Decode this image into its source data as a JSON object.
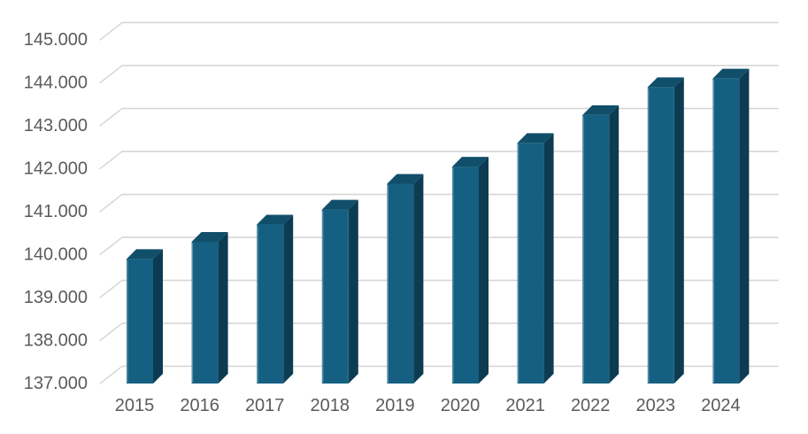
{
  "chart_data": {
    "type": "bar",
    "variant": "3d-column",
    "title": "",
    "categories": [
      "2015",
      "2016",
      "2017",
      "2018",
      "2019",
      "2020",
      "2021",
      "2022",
      "2023",
      "2024"
    ],
    "values": [
      139900,
      140300,
      140700,
      141050,
      141650,
      142050,
      142600,
      143250,
      143900,
      144100
    ],
    "ylim": [
      137000,
      145000
    ],
    "ytick_step": 1000,
    "ytick_labels": [
      "137.000",
      "138.000",
      "139.000",
      "140.000",
      "141.000",
      "142.000",
      "143.000",
      "144.000",
      "145.000"
    ],
    "grid": true,
    "legend": false,
    "colors": {
      "background": "#ffffff",
      "bar_front": "#156082",
      "bar_top": "#114e69",
      "bar_side": "#0d3c52",
      "bar_highlight": "rgba(255,255,255,0.30)",
      "gridline": "#d4d4d4",
      "axis_text": "#5b5b5b"
    }
  }
}
